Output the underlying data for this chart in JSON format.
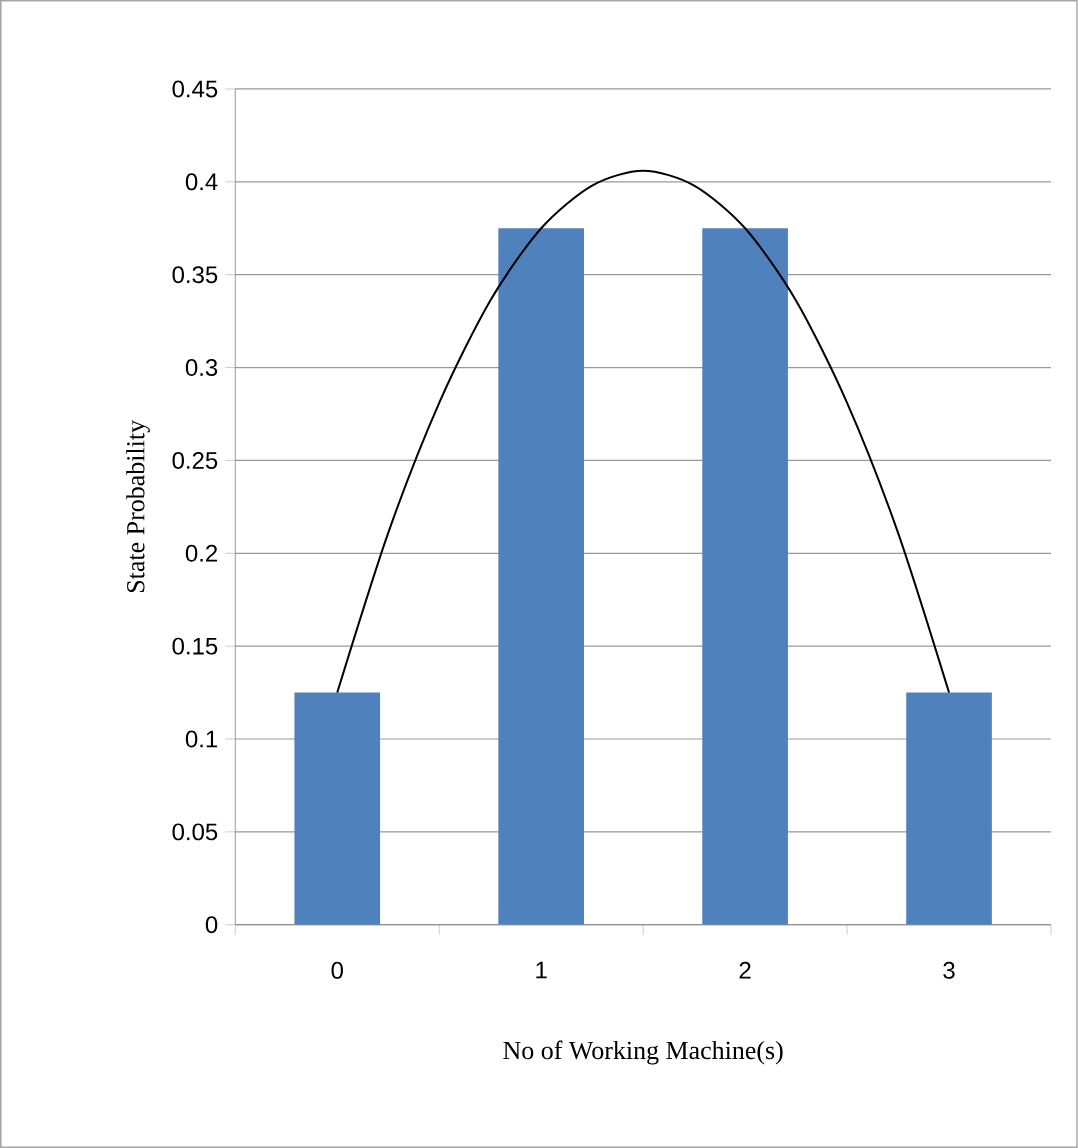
{
  "chart_data": {
    "type": "bar",
    "xlabel": "No of Working  Machine(s)",
    "ylabel": "State Probability",
    "x": [
      0,
      1,
      2,
      3
    ],
    "series": [
      {
        "color": "#4f81bd",
        "values": [
          0.125,
          0.375,
          0.375,
          0.125
        ]
      },
      {
        "type": "line",
        "color": "#000000",
        "x": [
          0,
          0.25,
          0.5,
          0.75,
          1,
          1.25,
          1.5,
          1.75,
          2,
          2.25,
          2.5,
          2.75,
          3
        ],
        "values": [
          0.125,
          0.211,
          0.281,
          0.336,
          0.375,
          0.398,
          0.406,
          0.398,
          0.375,
          0.336,
          0.281,
          0.211,
          0.125
        ]
      }
    ],
    "xlim": [
      -0.5,
      3.5
    ],
    "xticks": [
      {
        "value": -0.5,
        "label": null
      },
      0,
      {
        "value": 0.5,
        "label": null
      },
      1,
      {
        "value": 1.5,
        "label": null
      },
      2,
      {
        "value": 2.5,
        "label": null
      },
      3,
      {
        "value": 3.5,
        "label": null
      }
    ],
    "ylim": [
      0,
      0.45
    ],
    "yticks": [
      0,
      0.05,
      0.1,
      0.15,
      0.2,
      0.25,
      0.3,
      0.35,
      0.4,
      0.45
    ],
    "grid": "y",
    "marker": "none"
  }
}
